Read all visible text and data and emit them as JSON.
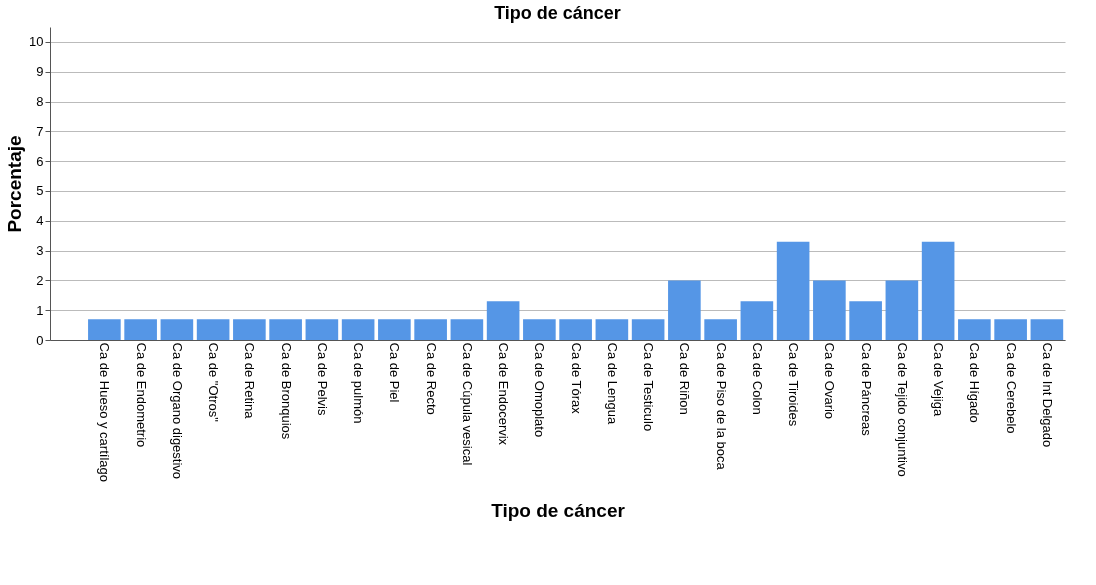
{
  "chart_data": {
    "type": "bar",
    "title": "Tipo de cáncer",
    "xlabel": "Tipo de cáncer",
    "ylabel": "Porcentaje",
    "categories": [
      null,
      "Ca de Hueso y cartílago",
      "Ca de Endometrio",
      "Ca de Organo digestivo",
      "Ca de \"Otros\"",
      "Ca de Retina",
      "Ca de Bronquios",
      "Ca de Pelvis",
      "Ca de pulmón",
      "Ca de Piel",
      "Ca de Recto",
      "Ca de Cúpula vesical",
      "Ca de Endocervix",
      "Ca de Omoplato",
      "Ca de Tórax",
      "Ca de Lengua",
      "Ca de Testiculo",
      "Ca de Riñon",
      "Ca de Piso de la boca",
      "Ca de Colon",
      "Ca de Tiroides",
      "Ca de Ovario",
      "Ca de Páncreas",
      "Ca de Tejido conjuntivo",
      "Ca de Vejiga",
      "Ca de Hígado",
      "Ca de Cerebelo",
      "Ca de Int Delgado"
    ],
    "values": [
      null,
      0.7,
      0.7,
      0.7,
      0.7,
      0.7,
      0.7,
      0.7,
      0.7,
      0.7,
      0.7,
      0.7,
      1.3,
      0.7,
      0.7,
      0.7,
      0.7,
      2,
      0.7,
      1.3,
      3.3,
      2,
      1.3,
      2,
      3.3,
      0.7,
      0.7,
      0.7
    ],
    "color": "#5596e6",
    "ylim": [
      0,
      10.5
    ],
    "yticks": [
      0,
      1,
      2,
      3,
      4,
      5,
      6,
      7,
      8,
      9,
      10
    ],
    "grid": "y"
  }
}
